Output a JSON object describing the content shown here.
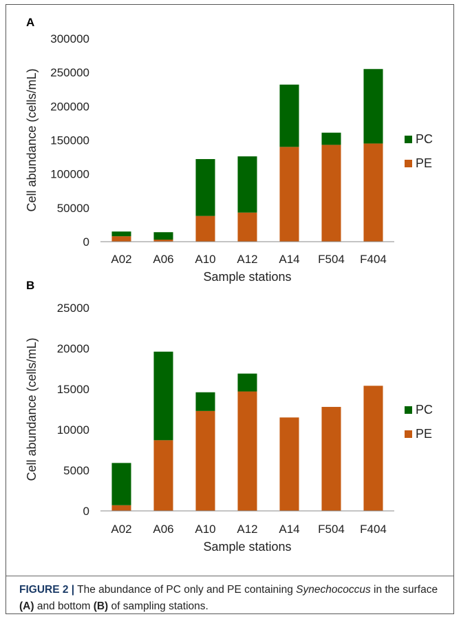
{
  "chart_data": [
    {
      "type": "bar",
      "stacked": true,
      "panel_label": "A",
      "categories": [
        "A02",
        "A06",
        "A10",
        "A12",
        "A14",
        "F504",
        "F404"
      ],
      "series": [
        {
          "name": "PE",
          "color": "#c55a11",
          "values": [
            8000,
            3000,
            38000,
            43000,
            140000,
            143000,
            145000
          ]
        },
        {
          "name": "PC",
          "color": "#006400",
          "values": [
            7000,
            11000,
            84000,
            83000,
            92000,
            18000,
            110000
          ]
        }
      ],
      "yticks": [
        "0",
        "50000",
        "100000",
        "150000",
        "200000",
        "250000",
        "300000"
      ],
      "ylim": [
        0,
        300000
      ],
      "xlabel": "Sample stations",
      "ylabel": "Cell abundance (cells/mL)",
      "legend": [
        "PC",
        "PE"
      ],
      "legend_position": "right"
    },
    {
      "type": "bar",
      "stacked": true,
      "panel_label": "B",
      "categories": [
        "A02",
        "A06",
        "A10",
        "A12",
        "A14",
        "F504",
        "F404"
      ],
      "series": [
        {
          "name": "PE",
          "color": "#c55a11",
          "values": [
            700,
            8700,
            12300,
            14700,
            11500,
            12800,
            15400
          ]
        },
        {
          "name": "PC",
          "color": "#006400",
          "values": [
            5200,
            10900,
            2300,
            2200,
            0,
            0,
            0
          ]
        }
      ],
      "yticks": [
        "0",
        "5000",
        "10000",
        "15000",
        "20000",
        "25000"
      ],
      "ylim": [
        0,
        25000
      ],
      "xlabel": "Sample stations",
      "ylabel": "Cell abundance (cells/mL)",
      "legend": [
        "PC",
        "PE"
      ],
      "legend_position": "right"
    }
  ],
  "caption": {
    "head": "FIGURE 2 |",
    "text_1": " The abundance of PC only and PE containing ",
    "italic": "Synechococcus",
    "text_2": " in the surface ",
    "bold_a": "(A)",
    "text_3": " and bottom ",
    "bold_b": "(B)",
    "text_4": " of sampling stations."
  }
}
